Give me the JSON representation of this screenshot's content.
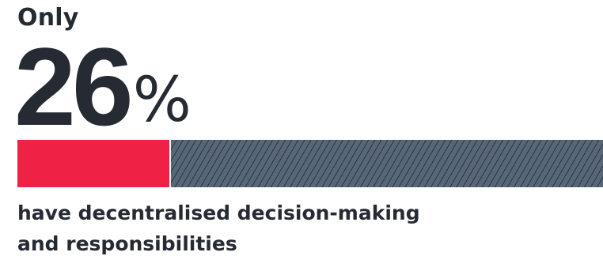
{
  "stat": {
    "prefix": "Only",
    "value": "26",
    "unit": "%",
    "fraction": 0.26
  },
  "description": "have decentralised decision-making and responsibilities",
  "colors": {
    "highlight": "#ef2245",
    "remainder": "#576778",
    "text": "#262b33"
  }
}
